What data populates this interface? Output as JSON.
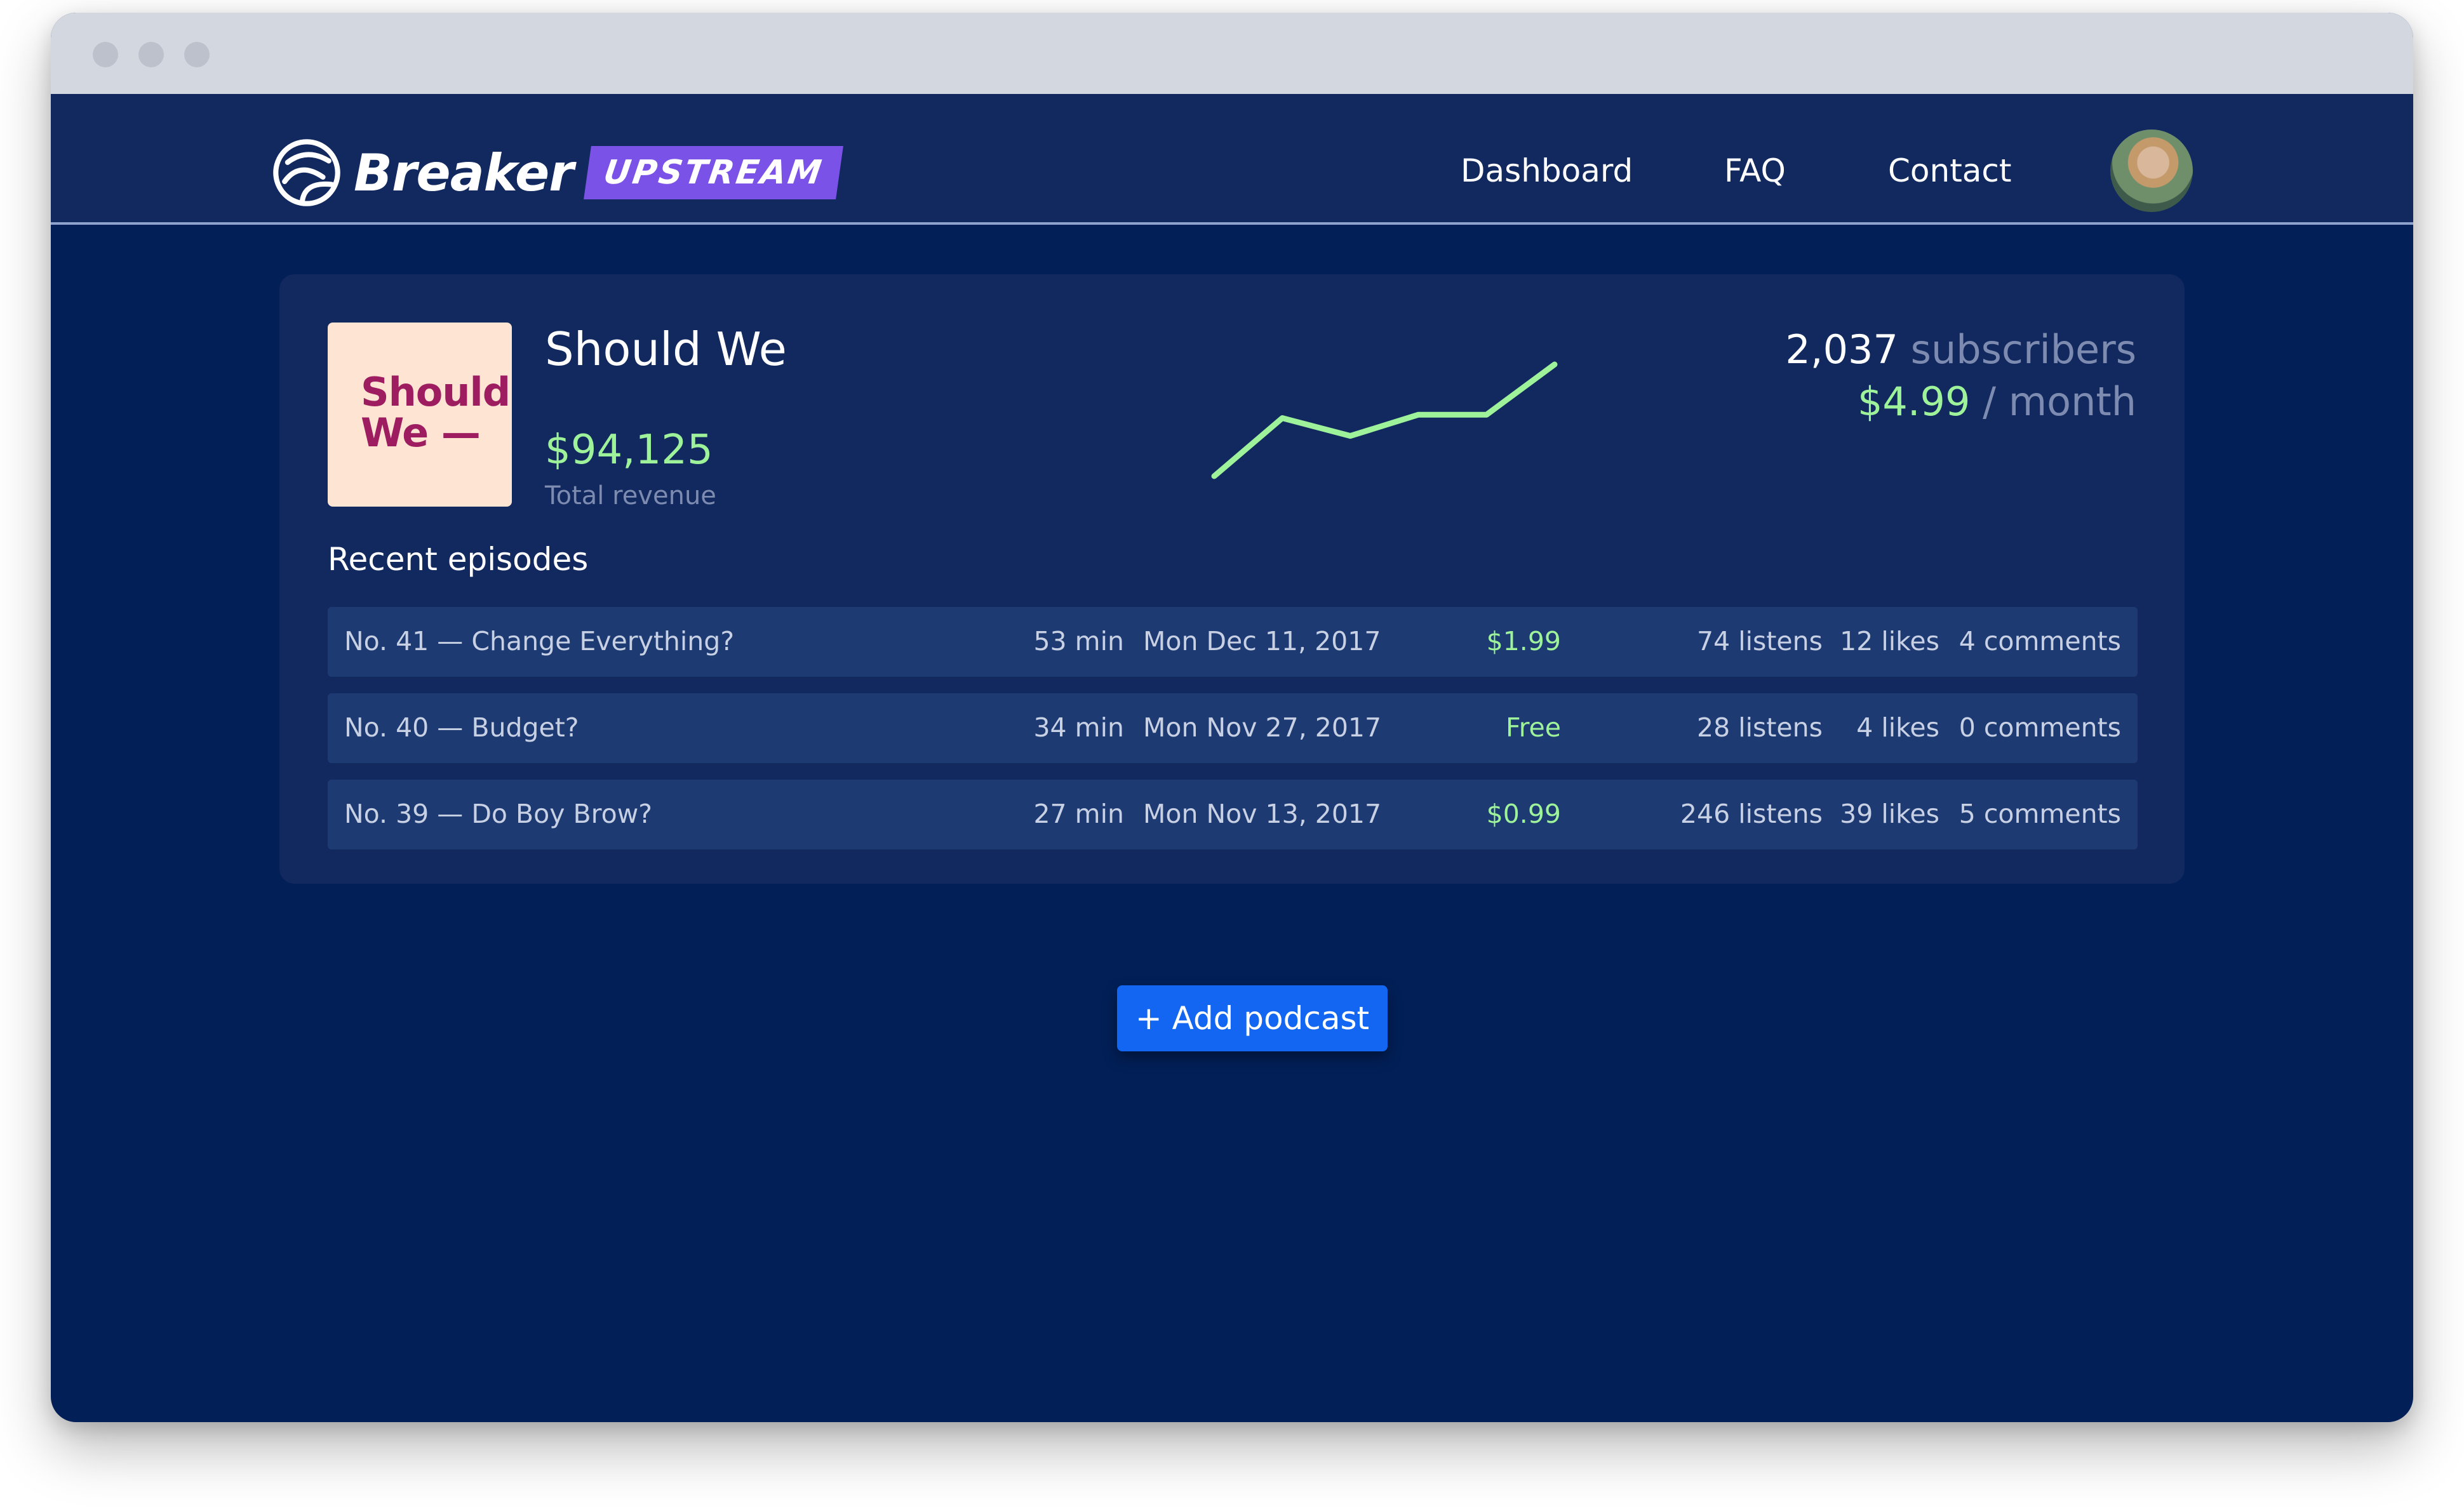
{
  "window": {
    "controls": [
      "close",
      "minimize",
      "maximize"
    ]
  },
  "nav": {
    "brand": "Breaker",
    "badge": "UPSTREAM",
    "logo_icon": "breaker-logo-icon",
    "links": [
      "Dashboard",
      "FAQ",
      "Contact"
    ],
    "avatar_icon": "user-avatar"
  },
  "podcast": {
    "cover_line1": "Should",
    "cover_line2": "We —",
    "title": "Should We",
    "revenue": "$94,125",
    "revenue_label": "Total revenue",
    "subscriber_count": "2,037",
    "subscriber_label": "subscribers",
    "price": "$4.99",
    "price_period": "/ month",
    "trend_points": [
      0,
      0.52,
      0.36,
      0.55,
      0.55,
      1.0
    ]
  },
  "episodes_title": "Recent episodes",
  "episodes": [
    {
      "title": "No. 41 — Change Everything?",
      "length": "53 min",
      "date": "Mon Dec 11, 2017",
      "price": "$1.99",
      "listens": "74 listens",
      "likes": "12 likes",
      "comments": "4 comments"
    },
    {
      "title": "No. 40 — Budget?",
      "length": "34 min",
      "date": "Mon Nov 27, 2017",
      "price": "Free",
      "listens": "28 listens",
      "likes": "4 likes",
      "comments": "0 comments"
    },
    {
      "title": "No. 39 — Do Boy Brow?",
      "length": "27 min",
      "date": "Mon Nov 13, 2017",
      "price": "$0.99",
      "listens": "246 listens",
      "likes": "39 likes",
      "comments": "5 comments"
    }
  ],
  "add_button": "+ Add podcast",
  "colors": {
    "background": "#021f57",
    "navbar": "#12295f",
    "accent_green": "#9ef39a",
    "button_blue": "#1266f1",
    "badge_purple": "#7a52e8"
  }
}
